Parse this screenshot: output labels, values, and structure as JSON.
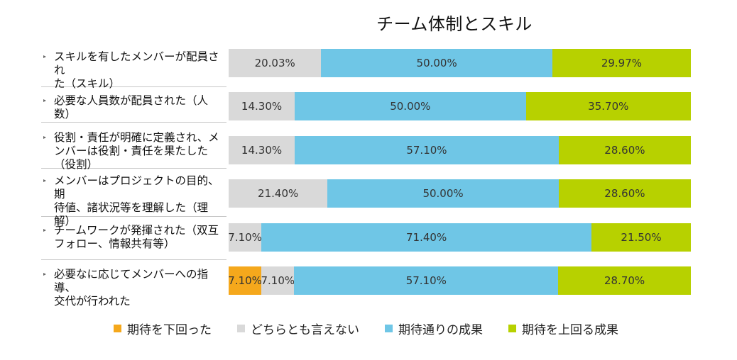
{
  "chart_data": {
    "type": "bar",
    "orientation": "horizontal",
    "stacked": true,
    "title": "チーム体制とスキル",
    "categories": [
      "スキルを有したメンバーが配員された（スキル）",
      "必要な人員数が配員された（人数）",
      "役割・責任が明確に定義され、メンバーは役割・責任を果たした（役割）",
      "メンバーはプロジェクトの目的、期待値、諸状況等を理解した（理解）",
      "チームワークが発揮された（双互フォロー、情報共有等）",
      "必要なに応じてメンバーへの指導、交代が行われた"
    ],
    "category_lines": [
      [
        "スキルを有したメンバーが配員され",
        "た（スキル）"
      ],
      [
        "必要な人員数が配員された（人",
        "数）"
      ],
      [
        "役割・責任が明確に定義され、メ",
        "ンバーは役割・責任を果たした",
        "（役割）"
      ],
      [
        "メンバーはプロジェクトの目的、期",
        "待値、諸状況等を理解した（理",
        "解）"
      ],
      [
        "チームワークが発揮された（双互",
        "フォロー、情報共有等）"
      ],
      [
        "必要なに応じてメンバーへの指導、",
        "交代が行われた"
      ]
    ],
    "series": [
      {
        "name": "期待を下回った",
        "color": "#F5A81C",
        "values": [
          0,
          0,
          0,
          0,
          0,
          7.1
        ],
        "labels": [
          "",
          "",
          "",
          "",
          "",
          "7.10%"
        ]
      },
      {
        "name": "どちらとも言えない",
        "color": "#D9D9D9",
        "values": [
          20.03,
          14.3,
          14.3,
          21.4,
          7.1,
          7.1
        ],
        "labels": [
          "20.03%",
          "14.30%",
          "14.30%",
          "21.40%",
          "7.10%",
          "7.10%"
        ]
      },
      {
        "name": "期待通りの成果",
        "color": "#6FC6E6",
        "values": [
          50.0,
          50.0,
          57.1,
          50.0,
          71.4,
          57.1
        ],
        "labels": [
          "50.00%",
          "50.00%",
          "57.10%",
          "50.00%",
          "71.40%",
          "57.10%"
        ]
      },
      {
        "name": "期待を上回る成果",
        "color": "#B7D100",
        "values": [
          29.97,
          35.7,
          28.6,
          28.6,
          21.5,
          28.7
        ],
        "labels": [
          "29.97%",
          "35.70%",
          "28.60%",
          "28.60%",
          "21.50%",
          "28.70%"
        ]
      }
    ],
    "xlim": [
      0,
      100
    ],
    "grid": false,
    "legend_position": "bottom"
  }
}
